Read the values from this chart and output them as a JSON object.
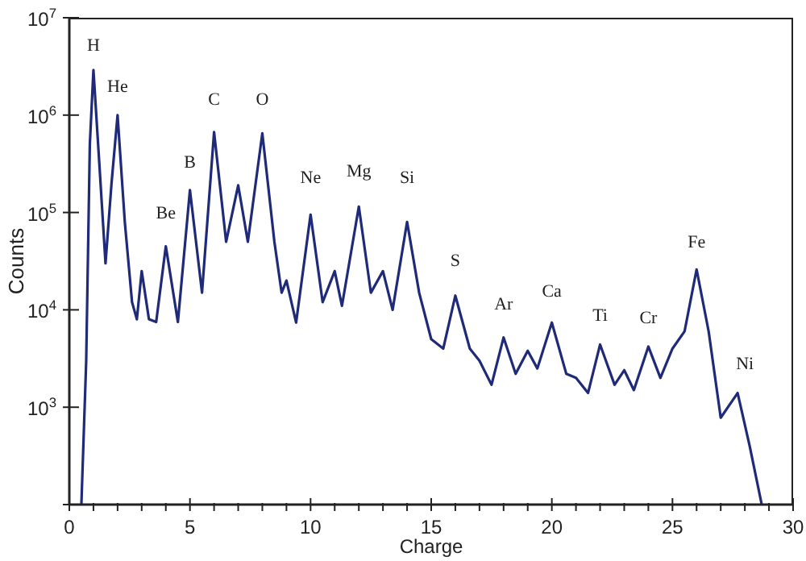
{
  "chart_data": {
    "type": "line",
    "xlabel": "Charge",
    "ylabel": "Counts",
    "log": "y",
    "marker": "none",
    "line_style": "solid",
    "xlim": [
      0,
      30
    ],
    "ylim": [
      100,
      10000000
    ],
    "xticks": [
      0,
      {
        "value": 1,
        "label": null
      },
      {
        "value": 2,
        "label": null
      },
      {
        "value": 3,
        "label": null
      },
      {
        "value": 4,
        "label": null
      },
      5,
      {
        "value": 6,
        "label": null
      },
      {
        "value": 7,
        "label": null
      },
      {
        "value": 8,
        "label": null
      },
      {
        "value": 9,
        "label": null
      },
      10,
      {
        "value": 11,
        "label": null
      },
      {
        "value": 12,
        "label": null
      },
      {
        "value": 13,
        "label": null
      },
      {
        "value": 14,
        "label": null
      },
      15,
      {
        "value": 16,
        "label": null
      },
      {
        "value": 17,
        "label": null
      },
      {
        "value": 18,
        "label": null
      },
      {
        "value": 19,
        "label": null
      },
      20,
      {
        "value": 21,
        "label": null
      },
      {
        "value": 22,
        "label": null
      },
      {
        "value": 23,
        "label": null
      },
      {
        "value": 24,
        "label": null
      },
      25,
      {
        "value": 26,
        "label": null
      },
      {
        "value": 27,
        "label": null
      },
      {
        "value": 28,
        "label": null
      },
      {
        "value": 29,
        "label": null
      },
      30
    ],
    "yticks": [
      {
        "value": 100,
        "label": null
      },
      {
        "value": 1000,
        "label": "10$^{3}$"
      },
      {
        "value": 10000,
        "label": "10$^{4}$"
      },
      {
        "value": 100000,
        "label": "10$^{5}$"
      },
      {
        "value": 1000000,
        "label": "10$^{6}$"
      },
      {
        "value": 10000000,
        "label": "10$^{7}$"
      }
    ],
    "series": [
      {
        "color": "#1f2a78",
        "x": [
          0.5,
          0.7,
          0.85,
          1.0,
          1.25,
          1.5,
          1.75,
          2.0,
          2.3,
          2.6,
          2.8,
          3.0,
          3.3,
          3.6,
          4.0,
          4.5,
          5.0,
          5.5,
          6.0,
          6.5,
          7.0,
          7.4,
          8.0,
          8.5,
          8.8,
          9.0,
          9.4,
          10.0,
          10.5,
          11.0,
          11.3,
          12.0,
          12.5,
          13.0,
          13.4,
          14.0,
          14.5,
          15.0,
          15.5,
          16.0,
          16.6,
          17.0,
          17.5,
          18.0,
          18.5,
          19.0,
          19.4,
          20.0,
          20.6,
          21.0,
          21.5,
          22.0,
          22.6,
          23.0,
          23.4,
          24.0,
          24.5,
          25.0,
          25.5,
          26.0,
          26.5,
          27.0,
          27.7,
          28.2,
          28.7
        ],
        "values": [
          100,
          3000,
          500000,
          2900000,
          300000,
          30000,
          200000,
          1000000,
          80000,
          12000,
          8000,
          25000,
          8000,
          7500,
          45000,
          7500,
          170000,
          15000,
          670000,
          50000,
          190000,
          50000,
          650000,
          50000,
          15000,
          20000,
          7400,
          95000,
          12000,
          25000,
          11000,
          115000,
          15000,
          25000,
          10000,
          80000,
          15000,
          5000,
          4000,
          14000,
          4000,
          3000,
          1700,
          5200,
          2200,
          3800,
          2500,
          7400,
          2200,
          2000,
          1400,
          4400,
          1700,
          2400,
          1500,
          4200,
          2000,
          4000,
          6000,
          26000,
          6000,
          780,
          1400,
          400,
          100
        ]
      }
    ],
    "annotations": [
      "H",
      "He",
      "Be",
      "B",
      "C",
      "O",
      "Ne",
      "Mg",
      "Si",
      "S",
      "Ar",
      "Ca",
      "Ti",
      "Cr",
      "Fe",
      "Ni"
    ]
  }
}
